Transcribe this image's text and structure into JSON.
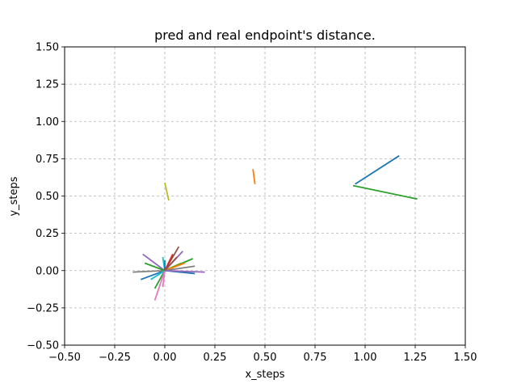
{
  "chart_data": {
    "type": "line",
    "title": "pred and real endpoint's distance.",
    "xlabel": "x_steps",
    "ylabel": "y_steps",
    "xlim": [
      -0.5,
      1.5
    ],
    "ylim": [
      -0.5,
      1.5
    ],
    "xticks": [
      "−0.50",
      "−0.25",
      "0.00",
      "0.25",
      "0.50",
      "0.75",
      "1.00",
      "1.25",
      "1.50"
    ],
    "yticks": [
      "−0.50",
      "−0.25",
      "0.00",
      "0.25",
      "0.50",
      "0.75",
      "1.00",
      "1.25",
      "1.50"
    ],
    "xtick_values": [
      -0.5,
      -0.25,
      0,
      0.25,
      0.5,
      0.75,
      1.0,
      1.25,
      1.5
    ],
    "ytick_values": [
      -0.5,
      -0.25,
      0,
      0.25,
      0.5,
      0.75,
      1.0,
      1.25,
      1.5
    ],
    "grid": true,
    "grid_style": "dashed",
    "segments": [
      {
        "color": "#1f77b4",
        "x": [
          0.95,
          1.17
        ],
        "y": [
          0.58,
          0.77
        ]
      },
      {
        "color": "#2ca02c",
        "x": [
          0.94,
          1.26
        ],
        "y": [
          0.57,
          0.48
        ]
      },
      {
        "color": "#ff7f0e",
        "x": [
          0.44,
          0.45
        ],
        "y": [
          0.68,
          0.58
        ]
      },
      {
        "color": "#bcbd22",
        "x": [
          0.0,
          0.02
        ],
        "y": [
          0.59,
          0.47
        ]
      },
      {
        "color": "#1f77b4",
        "x": [
          -0.12,
          0.0
        ],
        "y": [
          -0.06,
          0.0
        ]
      },
      {
        "color": "#7f7f7f",
        "x": [
          -0.16,
          0.0
        ],
        "y": [
          -0.01,
          0.0
        ]
      },
      {
        "color": "#9467bd",
        "x": [
          -0.11,
          0.0
        ],
        "y": [
          0.11,
          0.0
        ]
      },
      {
        "color": "#2ca02c",
        "x": [
          -0.1,
          0.0
        ],
        "y": [
          0.05,
          0.0
        ]
      },
      {
        "color": "#17becf",
        "x": [
          -0.07,
          0.0
        ],
        "y": [
          -0.06,
          0.0
        ]
      },
      {
        "color": "#2ca02c",
        "x": [
          -0.05,
          0.0
        ],
        "y": [
          -0.12,
          0.0
        ]
      },
      {
        "color": "#e377c2",
        "x": [
          -0.05,
          0.0
        ],
        "y": [
          -0.2,
          0.0
        ]
      },
      {
        "color": "#e377c2",
        "x": [
          -0.01,
          0.0
        ],
        "y": [
          -0.11,
          0.0
        ]
      },
      {
        "color": "#17becf",
        "x": [
          -0.01,
          0.0
        ],
        "y": [
          0.09,
          0.0
        ]
      },
      {
        "color": "#1f77b4",
        "x": [
          0.0,
          0.0
        ],
        "y": [
          0.07,
          0.0
        ]
      },
      {
        "color": "#8c564b",
        "x": [
          0.0,
          0.07
        ],
        "y": [
          0.0,
          0.16
        ]
      },
      {
        "color": "#d62728",
        "x": [
          0.0,
          0.04
        ],
        "y": [
          0.0,
          0.11
        ]
      },
      {
        "color": "#9467bd",
        "x": [
          0.0,
          0.09
        ],
        "y": [
          0.0,
          0.13
        ]
      },
      {
        "color": "#bcbd22",
        "x": [
          0.0,
          0.08
        ],
        "y": [
          0.0,
          0.05
        ]
      },
      {
        "color": "#2ca02c",
        "x": [
          0.0,
          0.14
        ],
        "y": [
          0.0,
          0.08
        ]
      },
      {
        "color": "#ff7f0e",
        "x": [
          0.0,
          0.1
        ],
        "y": [
          0.0,
          0.05
        ]
      },
      {
        "color": "#7f7f7f",
        "x": [
          0.0,
          0.15
        ],
        "y": [
          0.0,
          0.03
        ]
      },
      {
        "color": "#1f77b4",
        "x": [
          0.0,
          0.15
        ],
        "y": [
          0.0,
          -0.02
        ]
      },
      {
        "color": "#9467bd",
        "x": [
          0.0,
          0.2
        ],
        "y": [
          0.0,
          -0.01
        ]
      },
      {
        "color": "#8c564b",
        "x": [
          0.0,
          0.06
        ],
        "y": [
          0.0,
          0.09
        ]
      }
    ]
  }
}
